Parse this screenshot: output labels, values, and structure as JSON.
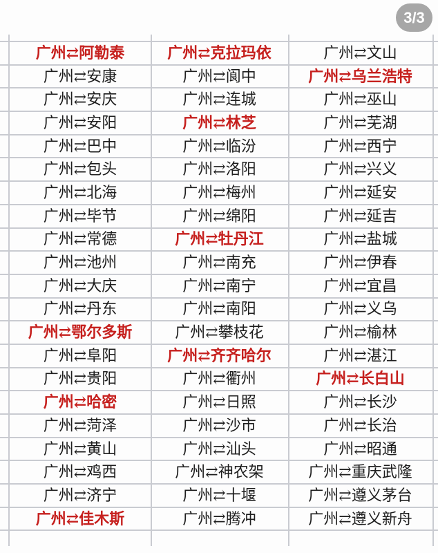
{
  "page": {
    "badge": "3/3"
  },
  "table": {
    "origin": "广州",
    "separator": "⇄",
    "rows": [
      [
        {
          "city": "阿勒泰",
          "red": true
        },
        {
          "city": "克拉玛依",
          "red": true
        },
        {
          "city": "文山",
          "red": false
        }
      ],
      [
        {
          "city": "安康",
          "red": false
        },
        {
          "city": "阆中",
          "red": false
        },
        {
          "city": "乌兰浩特",
          "red": true
        }
      ],
      [
        {
          "city": "安庆",
          "red": false
        },
        {
          "city": "连城",
          "red": false
        },
        {
          "city": "巫山",
          "red": false
        }
      ],
      [
        {
          "city": "安阳",
          "red": false
        },
        {
          "city": "林芝",
          "red": true
        },
        {
          "city": "芜湖",
          "red": false
        }
      ],
      [
        {
          "city": "巴中",
          "red": false
        },
        {
          "city": "临汾",
          "red": false
        },
        {
          "city": "西宁",
          "red": false
        }
      ],
      [
        {
          "city": "包头",
          "red": false
        },
        {
          "city": "洛阳",
          "red": false
        },
        {
          "city": "兴义",
          "red": false
        }
      ],
      [
        {
          "city": "北海",
          "red": false
        },
        {
          "city": "梅州",
          "red": false
        },
        {
          "city": "延安",
          "red": false
        }
      ],
      [
        {
          "city": "毕节",
          "red": false
        },
        {
          "city": "绵阳",
          "red": false
        },
        {
          "city": "延吉",
          "red": false
        }
      ],
      [
        {
          "city": "常德",
          "red": false
        },
        {
          "city": "牡丹江",
          "red": true
        },
        {
          "city": "盐城",
          "red": false
        }
      ],
      [
        {
          "city": "池州",
          "red": false
        },
        {
          "city": "南充",
          "red": false
        },
        {
          "city": "伊春",
          "red": false
        }
      ],
      [
        {
          "city": "大庆",
          "red": false
        },
        {
          "city": "南宁",
          "red": false
        },
        {
          "city": "宜昌",
          "red": false
        }
      ],
      [
        {
          "city": "丹东",
          "red": false
        },
        {
          "city": "南阳",
          "red": false
        },
        {
          "city": "义乌",
          "red": false
        }
      ],
      [
        {
          "city": "鄂尔多斯",
          "red": true
        },
        {
          "city": "攀枝花",
          "red": false
        },
        {
          "city": "榆林",
          "red": false
        }
      ],
      [
        {
          "city": "阜阳",
          "red": false
        },
        {
          "city": "齐齐哈尔",
          "red": true
        },
        {
          "city": "湛江",
          "red": false
        }
      ],
      [
        {
          "city": "贵阳",
          "red": false
        },
        {
          "city": "衢州",
          "red": false
        },
        {
          "city": "长白山",
          "red": true
        }
      ],
      [
        {
          "city": "哈密",
          "red": true
        },
        {
          "city": "日照",
          "red": false
        },
        {
          "city": "长沙",
          "red": false
        }
      ],
      [
        {
          "city": "菏泽",
          "red": false
        },
        {
          "city": "沙市",
          "red": false
        },
        {
          "city": "长治",
          "red": false
        }
      ],
      [
        {
          "city": "黄山",
          "red": false
        },
        {
          "city": "汕头",
          "red": false
        },
        {
          "city": "昭通",
          "red": false
        }
      ],
      [
        {
          "city": "鸡西",
          "red": false
        },
        {
          "city": "神农架",
          "red": false
        },
        {
          "city": "重庆武隆",
          "red": false
        }
      ],
      [
        {
          "city": "济宁",
          "red": false
        },
        {
          "city": "十堰",
          "red": false
        },
        {
          "city": "遵义茅台",
          "red": false
        }
      ],
      [
        {
          "city": "佳木斯",
          "red": true
        },
        {
          "city": "腾冲",
          "red": false
        },
        {
          "city": "遵义新舟",
          "red": false
        }
      ]
    ]
  }
}
